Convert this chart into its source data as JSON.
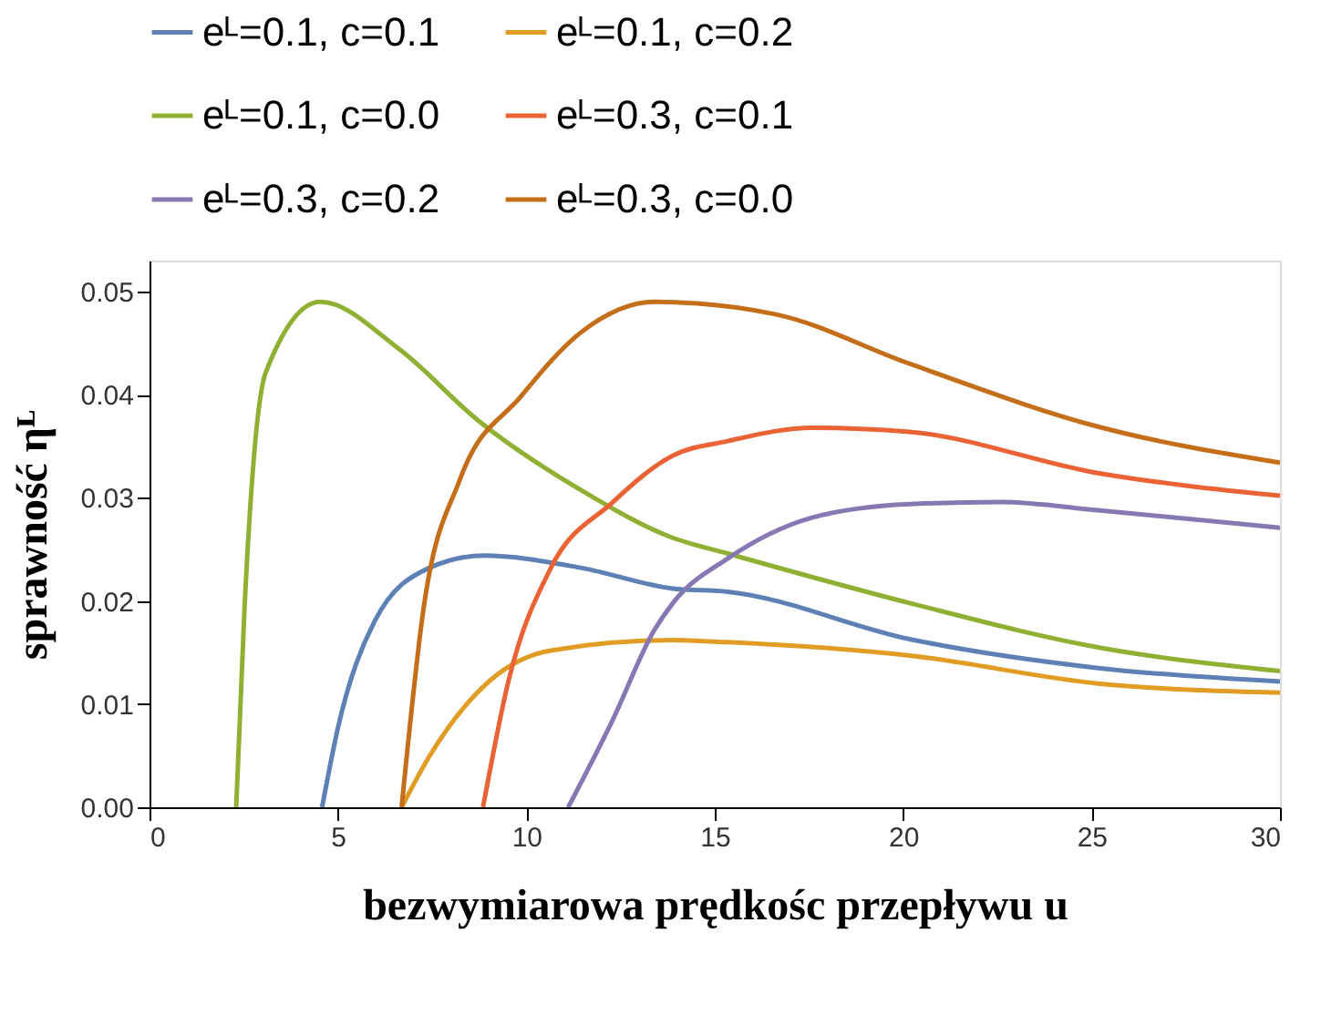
{
  "chart_data": {
    "type": "line",
    "xlabel": "bezwymiarowa prędkośc przepływu u",
    "ylabel": "sprawność ηᴸ",
    "xlim": [
      0,
      30
    ],
    "ylim": [
      0,
      0.053
    ],
    "xticks": [
      0,
      5,
      10,
      15,
      20,
      25,
      30
    ],
    "yticks": [
      {
        "value": 0,
        "label": "0.00"
      },
      {
        "value": 0.01,
        "label": "0.01"
      },
      {
        "value": 0.02,
        "label": "0.02"
      },
      {
        "value": 0.03,
        "label": "0.03"
      },
      {
        "value": 0.04,
        "label": "0.04"
      },
      {
        "value": 0.05,
        "label": "0.05"
      }
    ],
    "grid": false,
    "legend": "top",
    "line_style": "solid",
    "marker": "none",
    "series": [
      {
        "name": "eᴸ=0.1, c=0.1",
        "color": "#5e81b5",
        "x": [
          4.58,
          5.0,
          5.97,
          7.42,
          8.87,
          11.47,
          13.89,
          15.34,
          20.17,
          25.17,
          30
        ],
        "values": [
          0,
          0.0077,
          0.018,
          0.0232,
          0.0244,
          0.0232,
          0.0212,
          0.0209,
          0.0163,
          0.0135,
          0.0122
        ]
      },
      {
        "name": "eᴸ=0.1, c=0.2",
        "color": "#e19c24",
        "x": [
          6.69,
          7.42,
          9.04,
          10.65,
          13.89,
          15.34,
          20.17,
          25.17,
          30
        ],
        "values": [
          0,
          0.0049,
          0.0123,
          0.0152,
          0.0162,
          0.016,
          0.0147,
          0.012,
          0.0111
        ]
      },
      {
        "name": "eᴸ=0.1, c=0.0",
        "color": "#8fb032",
        "x": [
          2.3,
          2.52,
          3.08,
          4.53,
          6.63,
          8.72,
          11.47,
          13.9,
          15.34,
          20.17,
          25.17,
          30
        ],
        "values": [
          0,
          0.0192,
          0.0421,
          0.049,
          0.0444,
          0.0375,
          0.0307,
          0.0261,
          0.0246,
          0.0198,
          0.0155,
          0.0132
        ]
      },
      {
        "name": "eᴸ=0.3, c=0.1",
        "color": "#eb6235",
        "x": [
          8.85,
          9.53,
          10.65,
          12.27,
          13.89,
          15.34,
          17.6,
          20.17,
          25.17,
          30
        ],
        "values": [
          0,
          0.0123,
          0.0232,
          0.0295,
          0.0341,
          0.0355,
          0.0368,
          0.0364,
          0.0324,
          0.0302
        ]
      },
      {
        "name": "eᴸ=0.3, c=0.2",
        "color": "#8778b3",
        "x": [
          11.11,
          12.27,
          13.4,
          13.89,
          15.34,
          17.6,
          20.17,
          22.6,
          25.17,
          30
        ],
        "values": [
          0,
          0.0083,
          0.0172,
          0.0198,
          0.0241,
          0.0281,
          0.0294,
          0.0296,
          0.0288,
          0.0271
        ]
      },
      {
        "name": "eᴸ=0.3, c=0.0",
        "color": "#c56e1a",
        "x": [
          6.69,
          7.27,
          8.24,
          9.85,
          11.47,
          13.4,
          16.6,
          20.17,
          25.17,
          30
        ],
        "values": [
          0,
          0.0192,
          0.0318,
          0.0398,
          0.0461,
          0.049,
          0.0478,
          0.043,
          0.0369,
          0.0334
        ]
      }
    ]
  }
}
